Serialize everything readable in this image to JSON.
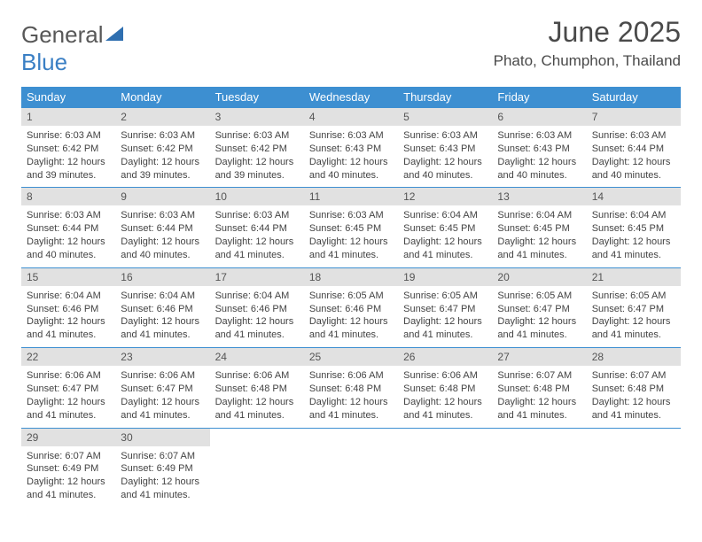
{
  "brand": {
    "name1": "General",
    "name2": "Blue",
    "text_color": "#585858",
    "accent_color": "#3a7fc4"
  },
  "title": "June 2025",
  "subtitle": "Phato, Chumphon, Thailand",
  "header_bg": "#3d8fd1",
  "header_fg": "#ffffff",
  "daynum_bg": "#e1e1e1",
  "border_color": "#3d8fd1",
  "day_names": [
    "Sunday",
    "Monday",
    "Tuesday",
    "Wednesday",
    "Thursday",
    "Friday",
    "Saturday"
  ],
  "weeks": [
    [
      {
        "n": "1",
        "sr": "6:03 AM",
        "ss": "6:42 PM",
        "dl": "12 hours and 39 minutes."
      },
      {
        "n": "2",
        "sr": "6:03 AM",
        "ss": "6:42 PM",
        "dl": "12 hours and 39 minutes."
      },
      {
        "n": "3",
        "sr": "6:03 AM",
        "ss": "6:42 PM",
        "dl": "12 hours and 39 minutes."
      },
      {
        "n": "4",
        "sr": "6:03 AM",
        "ss": "6:43 PM",
        "dl": "12 hours and 40 minutes."
      },
      {
        "n": "5",
        "sr": "6:03 AM",
        "ss": "6:43 PM",
        "dl": "12 hours and 40 minutes."
      },
      {
        "n": "6",
        "sr": "6:03 AM",
        "ss": "6:43 PM",
        "dl": "12 hours and 40 minutes."
      },
      {
        "n": "7",
        "sr": "6:03 AM",
        "ss": "6:44 PM",
        "dl": "12 hours and 40 minutes."
      }
    ],
    [
      {
        "n": "8",
        "sr": "6:03 AM",
        "ss": "6:44 PM",
        "dl": "12 hours and 40 minutes."
      },
      {
        "n": "9",
        "sr": "6:03 AM",
        "ss": "6:44 PM",
        "dl": "12 hours and 40 minutes."
      },
      {
        "n": "10",
        "sr": "6:03 AM",
        "ss": "6:44 PM",
        "dl": "12 hours and 41 minutes."
      },
      {
        "n": "11",
        "sr": "6:03 AM",
        "ss": "6:45 PM",
        "dl": "12 hours and 41 minutes."
      },
      {
        "n": "12",
        "sr": "6:04 AM",
        "ss": "6:45 PM",
        "dl": "12 hours and 41 minutes."
      },
      {
        "n": "13",
        "sr": "6:04 AM",
        "ss": "6:45 PM",
        "dl": "12 hours and 41 minutes."
      },
      {
        "n": "14",
        "sr": "6:04 AM",
        "ss": "6:45 PM",
        "dl": "12 hours and 41 minutes."
      }
    ],
    [
      {
        "n": "15",
        "sr": "6:04 AM",
        "ss": "6:46 PM",
        "dl": "12 hours and 41 minutes."
      },
      {
        "n": "16",
        "sr": "6:04 AM",
        "ss": "6:46 PM",
        "dl": "12 hours and 41 minutes."
      },
      {
        "n": "17",
        "sr": "6:04 AM",
        "ss": "6:46 PM",
        "dl": "12 hours and 41 minutes."
      },
      {
        "n": "18",
        "sr": "6:05 AM",
        "ss": "6:46 PM",
        "dl": "12 hours and 41 minutes."
      },
      {
        "n": "19",
        "sr": "6:05 AM",
        "ss": "6:47 PM",
        "dl": "12 hours and 41 minutes."
      },
      {
        "n": "20",
        "sr": "6:05 AM",
        "ss": "6:47 PM",
        "dl": "12 hours and 41 minutes."
      },
      {
        "n": "21",
        "sr": "6:05 AM",
        "ss": "6:47 PM",
        "dl": "12 hours and 41 minutes."
      }
    ],
    [
      {
        "n": "22",
        "sr": "6:06 AM",
        "ss": "6:47 PM",
        "dl": "12 hours and 41 minutes."
      },
      {
        "n": "23",
        "sr": "6:06 AM",
        "ss": "6:47 PM",
        "dl": "12 hours and 41 minutes."
      },
      {
        "n": "24",
        "sr": "6:06 AM",
        "ss": "6:48 PM",
        "dl": "12 hours and 41 minutes."
      },
      {
        "n": "25",
        "sr": "6:06 AM",
        "ss": "6:48 PM",
        "dl": "12 hours and 41 minutes."
      },
      {
        "n": "26",
        "sr": "6:06 AM",
        "ss": "6:48 PM",
        "dl": "12 hours and 41 minutes."
      },
      {
        "n": "27",
        "sr": "6:07 AM",
        "ss": "6:48 PM",
        "dl": "12 hours and 41 minutes."
      },
      {
        "n": "28",
        "sr": "6:07 AM",
        "ss": "6:48 PM",
        "dl": "12 hours and 41 minutes."
      }
    ],
    [
      {
        "n": "29",
        "sr": "6:07 AM",
        "ss": "6:49 PM",
        "dl": "12 hours and 41 minutes."
      },
      {
        "n": "30",
        "sr": "6:07 AM",
        "ss": "6:49 PM",
        "dl": "12 hours and 41 minutes."
      },
      null,
      null,
      null,
      null,
      null
    ]
  ],
  "labels": {
    "sunrise": "Sunrise: ",
    "sunset": "Sunset: ",
    "daylight": "Daylight: "
  }
}
